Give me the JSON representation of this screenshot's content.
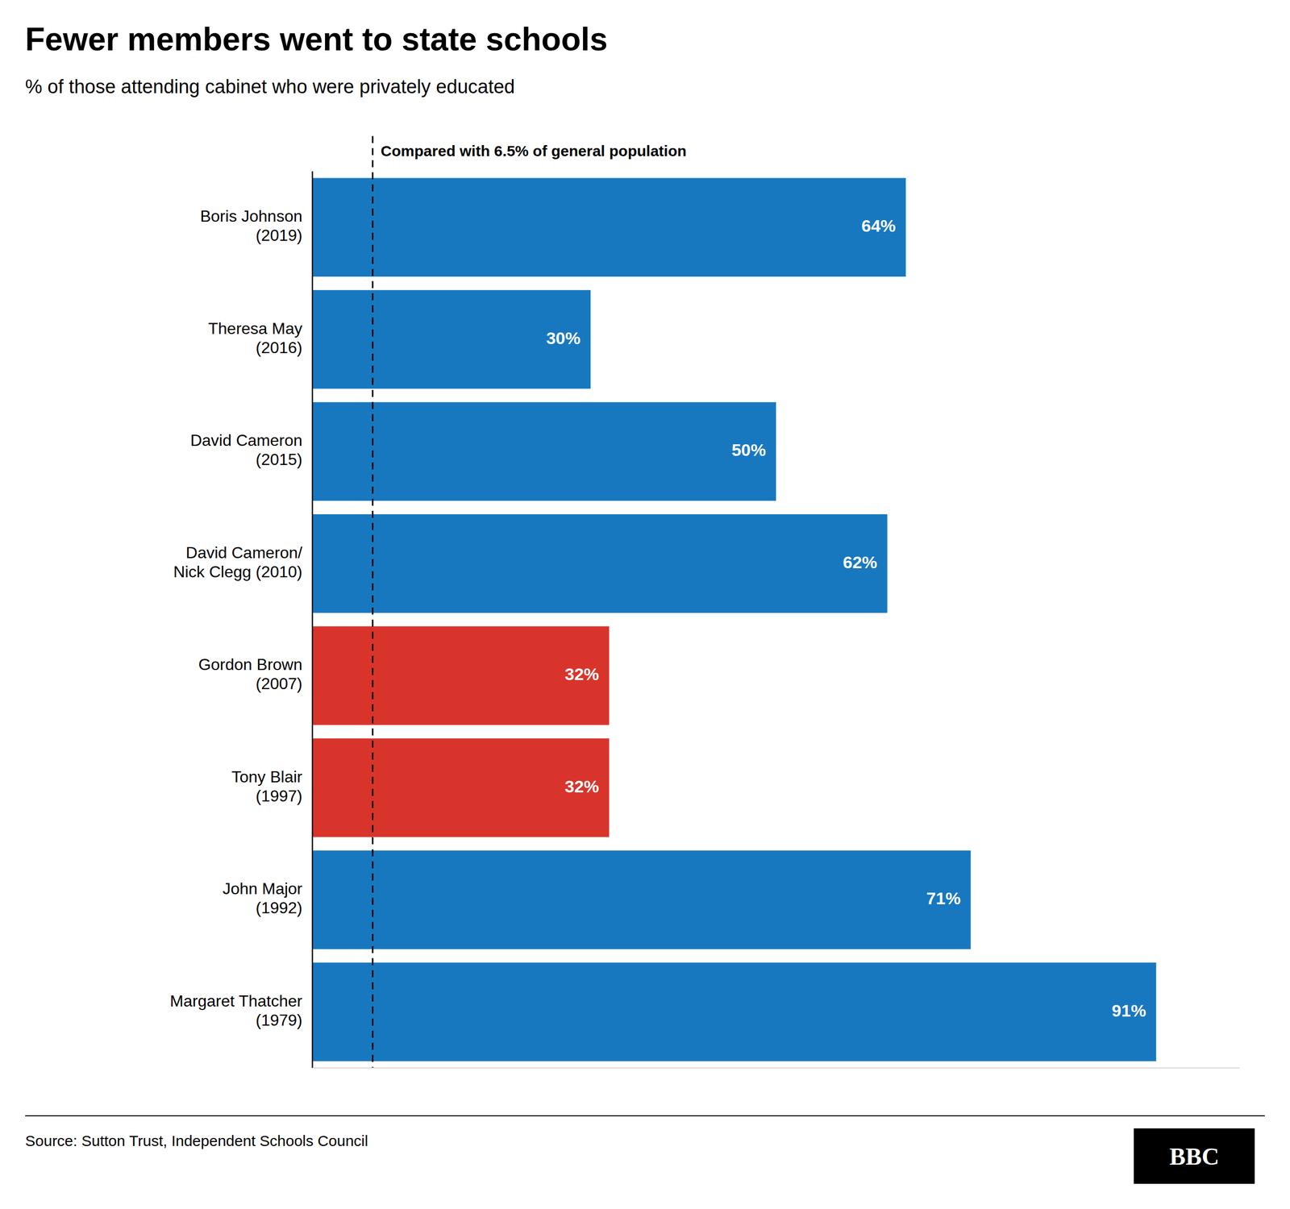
{
  "chart_data": {
    "type": "bar",
    "orientation": "horizontal",
    "title": "Fewer members went to state schools",
    "subtitle": "% of those attending cabinet who were privately educated",
    "annotation": "Compared with 6.5% of general population",
    "source": "Source: Sutton Trust, Independent Schools Council",
    "logo": "BBC",
    "categories": [
      "Boris Johnson\n(2019)",
      "Theresa May\n(2016)",
      "David Cameron\n(2015)",
      "David Cameron/\nNick Clegg (2010)",
      "Gordon Brown\n(2007)",
      "Tony Blair\n(1997)",
      "John Major\n(1992)",
      "Margaret Thatcher\n(1979)"
    ],
    "values": [
      64,
      30,
      50,
      62,
      32,
      32,
      71,
      91
    ],
    "value_labels": [
      "64%",
      "30%",
      "50%",
      "62%",
      "32%",
      "32%",
      "71%",
      "91%"
    ],
    "colors": [
      "#1878bf",
      "#1878bf",
      "#1878bf",
      "#1878bf",
      "#d9342b",
      "#d9342b",
      "#1878bf",
      "#1878bf"
    ],
    "reference_line": 6.5,
    "xlim": [
      0,
      100
    ],
    "data_labels": true,
    "tick_labels": "y",
    "grid": false
  }
}
